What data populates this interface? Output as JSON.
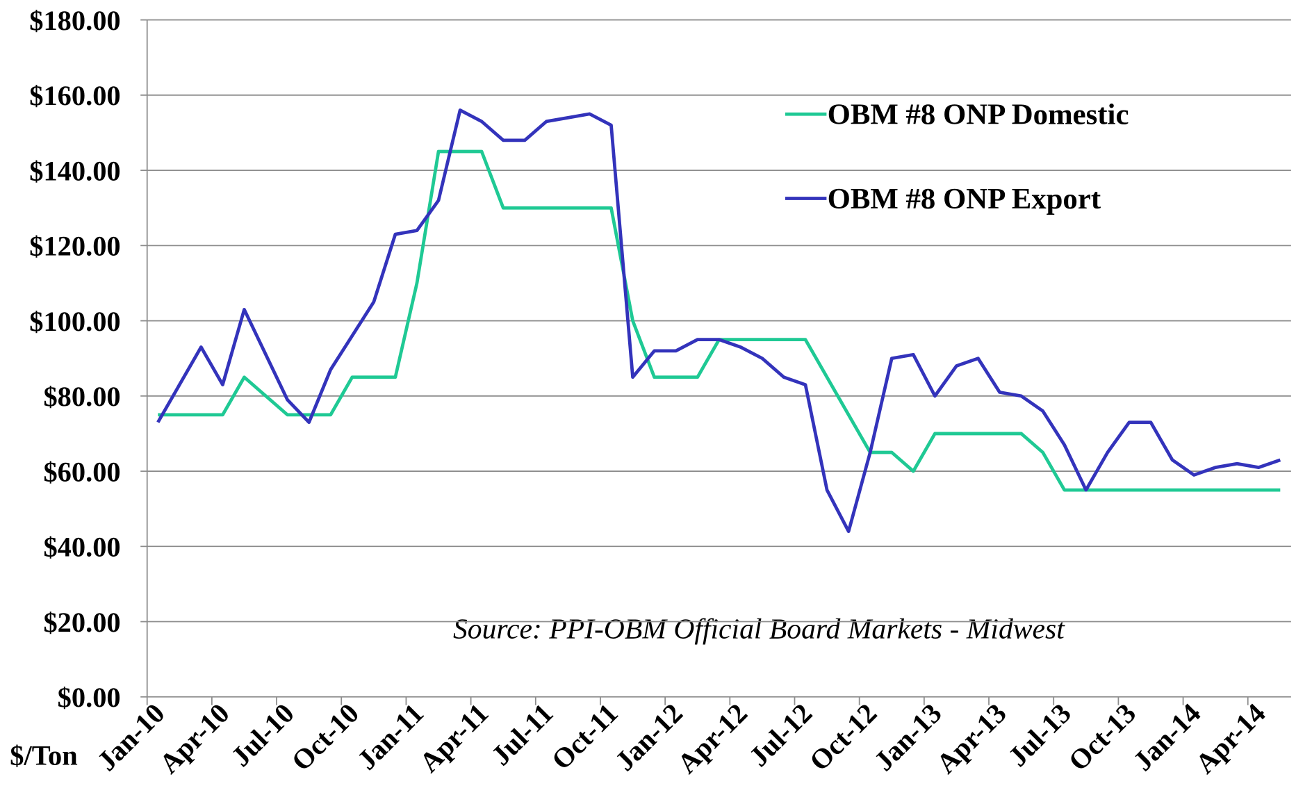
{
  "chart_data": {
    "type": "line",
    "y_label": "$/Ton",
    "annotation": "Source: PPI-OBM Official Board Markets - Midwest",
    "categories": [
      "Jan-10",
      null,
      null,
      "Apr-10",
      null,
      null,
      "Jul-10",
      null,
      null,
      "Oct-10",
      null,
      null,
      "Jan-11",
      null,
      null,
      "Apr-11",
      null,
      null,
      "Jul-11",
      null,
      null,
      "Oct-11",
      null,
      null,
      "Jan-12",
      null,
      null,
      "Apr-12",
      null,
      null,
      "Jul-12",
      null,
      null,
      "Oct-12",
      null,
      null,
      "Jan-13",
      null,
      null,
      "Apr-13",
      null,
      null,
      "Jul-13",
      null,
      null,
      "Oct-13",
      null,
      null,
      "Jan-14",
      null,
      null,
      "Apr-14",
      null
    ],
    "series": [
      {
        "name": "OBM #8 ONP Domestic",
        "color": "#1fc994",
        "values": [
          75,
          75,
          75,
          75,
          85,
          80,
          75,
          75,
          75,
          85,
          85,
          85,
          110,
          145,
          145,
          145,
          130,
          130,
          130,
          130,
          130,
          130,
          100,
          85,
          85,
          85,
          95,
          95,
          95,
          95,
          95,
          85,
          75,
          65,
          65,
          60,
          70,
          70,
          70,
          70,
          70,
          65,
          55,
          55,
          55,
          55,
          55,
          55,
          55,
          55,
          55,
          55,
          55
        ]
      },
      {
        "name": "OBM #8 ONP Export",
        "color": "#3333bb",
        "values": [
          73,
          83,
          93,
          83,
          103,
          91,
          79,
          73,
          87,
          96,
          105,
          123,
          124,
          132,
          156,
          153,
          148,
          148,
          153,
          154,
          155,
          152,
          85,
          92,
          92,
          95,
          95,
          93,
          90,
          85,
          83,
          55,
          44,
          65,
          90,
          91,
          80,
          88,
          90,
          81,
          80,
          76,
          67,
          55,
          65,
          73,
          73,
          63,
          59,
          61,
          62,
          61,
          63
        ]
      }
    ],
    "ylim": [
      0,
      180
    ],
    "yticks": [
      {
        "value": 0,
        "label": "$0.00"
      },
      {
        "value": 20,
        "label": "$20.00"
      },
      {
        "value": 40,
        "label": "$40.00"
      },
      {
        "value": 60,
        "label": "$60.00"
      },
      {
        "value": 80,
        "label": "$80.00"
      },
      {
        "value": 100,
        "label": "$100.00"
      },
      {
        "value": 120,
        "label": "$120.00"
      },
      {
        "value": 140,
        "label": "$140.00"
      },
      {
        "value": 160,
        "label": "$160.00"
      },
      {
        "value": 180,
        "label": "$180.00"
      }
    ],
    "grid": true
  }
}
